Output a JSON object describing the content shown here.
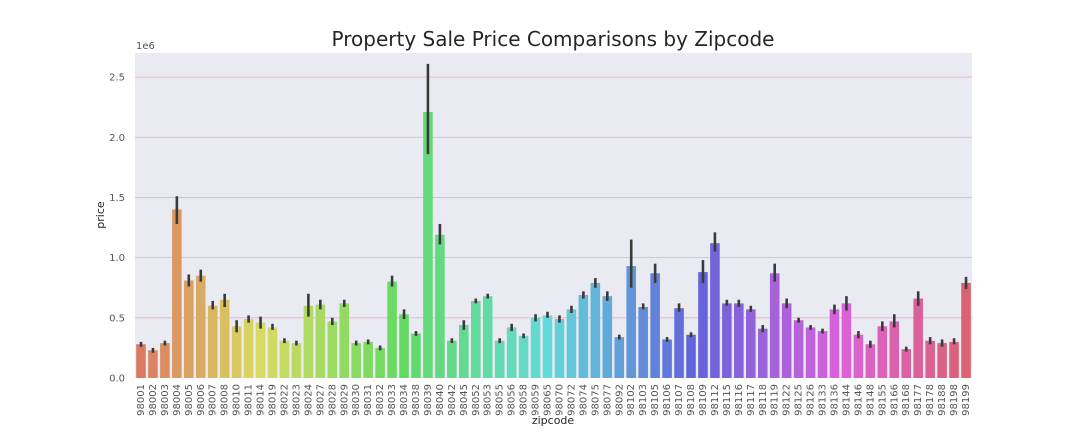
{
  "chart_data": {
    "type": "bar",
    "title": "Property Sale Price Comparisons by Zipcode",
    "xlabel": "zipcode",
    "ylabel": "price",
    "y_offset_label": "1e6",
    "ylim": [
      0,
      2.7
    ],
    "yticks": [
      "0.0",
      "0.5",
      "1.0",
      "1.5",
      "2.0",
      "2.5"
    ],
    "ytick_values": [
      0,
      0.5,
      1.0,
      1.5,
      2.0,
      2.5
    ],
    "grid": true,
    "plot_background": "#eaeaf2",
    "grid_color": "#e8b4b8",
    "errorbar_color": "#3a3a3a",
    "categories": [
      "98001",
      "98002",
      "98003",
      "98004",
      "98005",
      "98006",
      "98007",
      "98008",
      "98010",
      "98011",
      "98014",
      "98019",
      "98022",
      "98023",
      "98024",
      "98027",
      "98028",
      "98029",
      "98030",
      "98031",
      "98032",
      "98033",
      "98034",
      "98038",
      "98039",
      "98040",
      "98042",
      "98045",
      "98052",
      "98053",
      "98055",
      "98056",
      "98058",
      "98059",
      "98065",
      "98070",
      "98072",
      "98074",
      "98075",
      "98077",
      "98092",
      "98102",
      "98103",
      "98105",
      "98106",
      "98107",
      "98108",
      "98109",
      "98112",
      "98115",
      "98116",
      "98117",
      "98118",
      "98119",
      "98122",
      "98125",
      "98126",
      "98133",
      "98136",
      "98144",
      "98146",
      "98148",
      "98155",
      "98166",
      "98168",
      "98177",
      "98178",
      "98188",
      "98198",
      "98199"
    ],
    "values": [
      0.28,
      0.23,
      0.29,
      1.4,
      0.81,
      0.85,
      0.6,
      0.65,
      0.43,
      0.49,
      0.46,
      0.42,
      0.31,
      0.29,
      0.6,
      0.61,
      0.47,
      0.62,
      0.29,
      0.3,
      0.25,
      0.8,
      0.53,
      0.37,
      2.21,
      1.19,
      0.31,
      0.44,
      0.64,
      0.68,
      0.31,
      0.42,
      0.35,
      0.5,
      0.52,
      0.49,
      0.57,
      0.69,
      0.79,
      0.68,
      0.34,
      0.93,
      0.59,
      0.87,
      0.32,
      0.58,
      0.36,
      0.88,
      1.12,
      0.62,
      0.62,
      0.57,
      0.41,
      0.87,
      0.62,
      0.48,
      0.42,
      0.39,
      0.57,
      0.62,
      0.36,
      0.28,
      0.43,
      0.47,
      0.24,
      0.66,
      0.31,
      0.29,
      0.3,
      0.79
    ],
    "err_low": [
      0.26,
      0.21,
      0.27,
      1.28,
      0.76,
      0.8,
      0.57,
      0.59,
      0.38,
      0.46,
      0.41,
      0.4,
      0.29,
      0.27,
      0.51,
      0.57,
      0.44,
      0.59,
      0.27,
      0.28,
      0.23,
      0.76,
      0.49,
      0.35,
      1.86,
      1.11,
      0.29,
      0.4,
      0.62,
      0.66,
      0.29,
      0.39,
      0.33,
      0.47,
      0.5,
      0.46,
      0.54,
      0.66,
      0.75,
      0.64,
      0.32,
      0.75,
      0.57,
      0.79,
      0.3,
      0.55,
      0.34,
      0.79,
      1.05,
      0.6,
      0.59,
      0.55,
      0.38,
      0.8,
      0.58,
      0.46,
      0.4,
      0.37,
      0.53,
      0.56,
      0.33,
      0.25,
      0.39,
      0.42,
      0.22,
      0.6,
      0.28,
      0.26,
      0.28,
      0.74
    ],
    "err_high": [
      0.3,
      0.25,
      0.31,
      1.51,
      0.86,
      0.9,
      0.64,
      0.7,
      0.48,
      0.52,
      0.51,
      0.45,
      0.33,
      0.31,
      0.7,
      0.65,
      0.5,
      0.65,
      0.31,
      0.32,
      0.27,
      0.85,
      0.57,
      0.39,
      2.61,
      1.28,
      0.33,
      0.48,
      0.66,
      0.7,
      0.33,
      0.45,
      0.37,
      0.53,
      0.55,
      0.52,
      0.6,
      0.72,
      0.83,
      0.72,
      0.36,
      1.15,
      0.62,
      0.95,
      0.34,
      0.62,
      0.38,
      0.98,
      1.21,
      0.65,
      0.65,
      0.6,
      0.44,
      0.95,
      0.66,
      0.5,
      0.44,
      0.41,
      0.61,
      0.68,
      0.39,
      0.31,
      0.47,
      0.53,
      0.26,
      0.72,
      0.34,
      0.32,
      0.33,
      0.84
    ]
  }
}
